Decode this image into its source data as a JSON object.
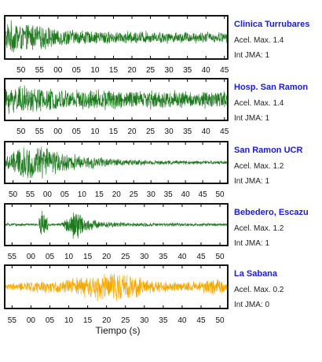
{
  "chart_data": [
    {
      "type": "line",
      "station": "Clinica Turrubares",
      "accel_label": "Acel. Max. 1.4",
      "jma_label": "Int JMA: 1",
      "color": "#1f7a1f",
      "amplitude": 0.5,
      "envelope": [
        1.0,
        0.95,
        0.85,
        0.7,
        0.6,
        0.5,
        0.45,
        0.42,
        0.4,
        0.4,
        0.38,
        0.35,
        0.35,
        0.36,
        0.35,
        0.33,
        0.33
      ],
      "xticks": [
        "50",
        "55",
        "00",
        "05",
        "10",
        "15",
        "20",
        "25",
        "30",
        "35",
        "40",
        "45"
      ],
      "xtick_start": 0.073,
      "xtick_end": 0.985
    },
    {
      "type": "line",
      "station": "Hosp. San Ramon",
      "accel_label": "Acel. Max. 1.4",
      "jma_label": "Int JMA: 1",
      "color": "#1f7a1f",
      "amplitude": 0.55,
      "envelope": [
        0.8,
        0.85,
        0.8,
        0.75,
        0.65,
        0.6,
        0.6,
        0.65,
        0.6,
        0.55,
        0.55,
        0.6,
        0.55,
        0.5,
        0.5,
        0.5,
        0.5
      ],
      "xticks": [
        "50",
        "55",
        "00",
        "05",
        "10",
        "15",
        "20",
        "25",
        "30",
        "35",
        "40",
        "45"
      ],
      "xtick_start": 0.073,
      "xtick_end": 0.985
    },
    {
      "type": "line",
      "station": "San Ramon UCR",
      "accel_label": "Acel. Max. 1.2",
      "jma_label": "Int JMA: 1",
      "color": "#1f7a1f",
      "amplitude": 0.6,
      "envelope": [
        0.35,
        0.9,
        1.0,
        0.8,
        0.6,
        0.45,
        0.35,
        0.28,
        0.22,
        0.18,
        0.15,
        0.13,
        0.12,
        0.11,
        0.1,
        0.1,
        0.09
      ],
      "xticks": [
        "50",
        "55",
        "00",
        "05",
        "10",
        "15",
        "20",
        "25",
        "30",
        "35",
        "40",
        "45",
        "50"
      ],
      "xtick_start": 0.037,
      "xtick_end": 0.965
    },
    {
      "type": "line",
      "station": "Bebedero, Escazu",
      "accel_label": "Acel. Max. 1.2",
      "jma_label": "Int JMA: 1",
      "color": "#1f7a1f",
      "amplitude": 0.55,
      "envelope": [
        0.08,
        0.08,
        0.08,
        0.08,
        0.08,
        1.0,
        0.35,
        0.2,
        0.15,
        0.12,
        0.12,
        0.1,
        0.1,
        0.09,
        0.09,
        0.08,
        0.08
      ],
      "spike_at": 0.17,
      "xticks": [
        "55",
        "00",
        "05",
        "10",
        "15",
        "20",
        "25",
        "30",
        "35",
        "40",
        "45",
        "50"
      ],
      "xtick_start": 0.033,
      "xtick_end": 0.965
    },
    {
      "type": "line",
      "station": "La Sabana",
      "accel_label": "Acel. Max. 0.2",
      "jma_label": "Int JMA: 0",
      "color": "#f5a800",
      "amplitude": 0.55,
      "envelope": [
        0.2,
        0.25,
        0.3,
        0.35,
        0.4,
        0.55,
        0.6,
        0.8,
        0.9,
        0.7,
        0.5,
        0.35,
        0.3,
        0.3,
        0.3,
        0.55,
        0.25
      ],
      "xticks": [
        "55",
        "00",
        "05",
        "10",
        "15",
        "20",
        "25",
        "30",
        "35",
        "40",
        "45",
        "50"
      ],
      "xtick_start": 0.033,
      "xtick_end": 0.965
    }
  ],
  "xlabel": "Tiempo (s)"
}
